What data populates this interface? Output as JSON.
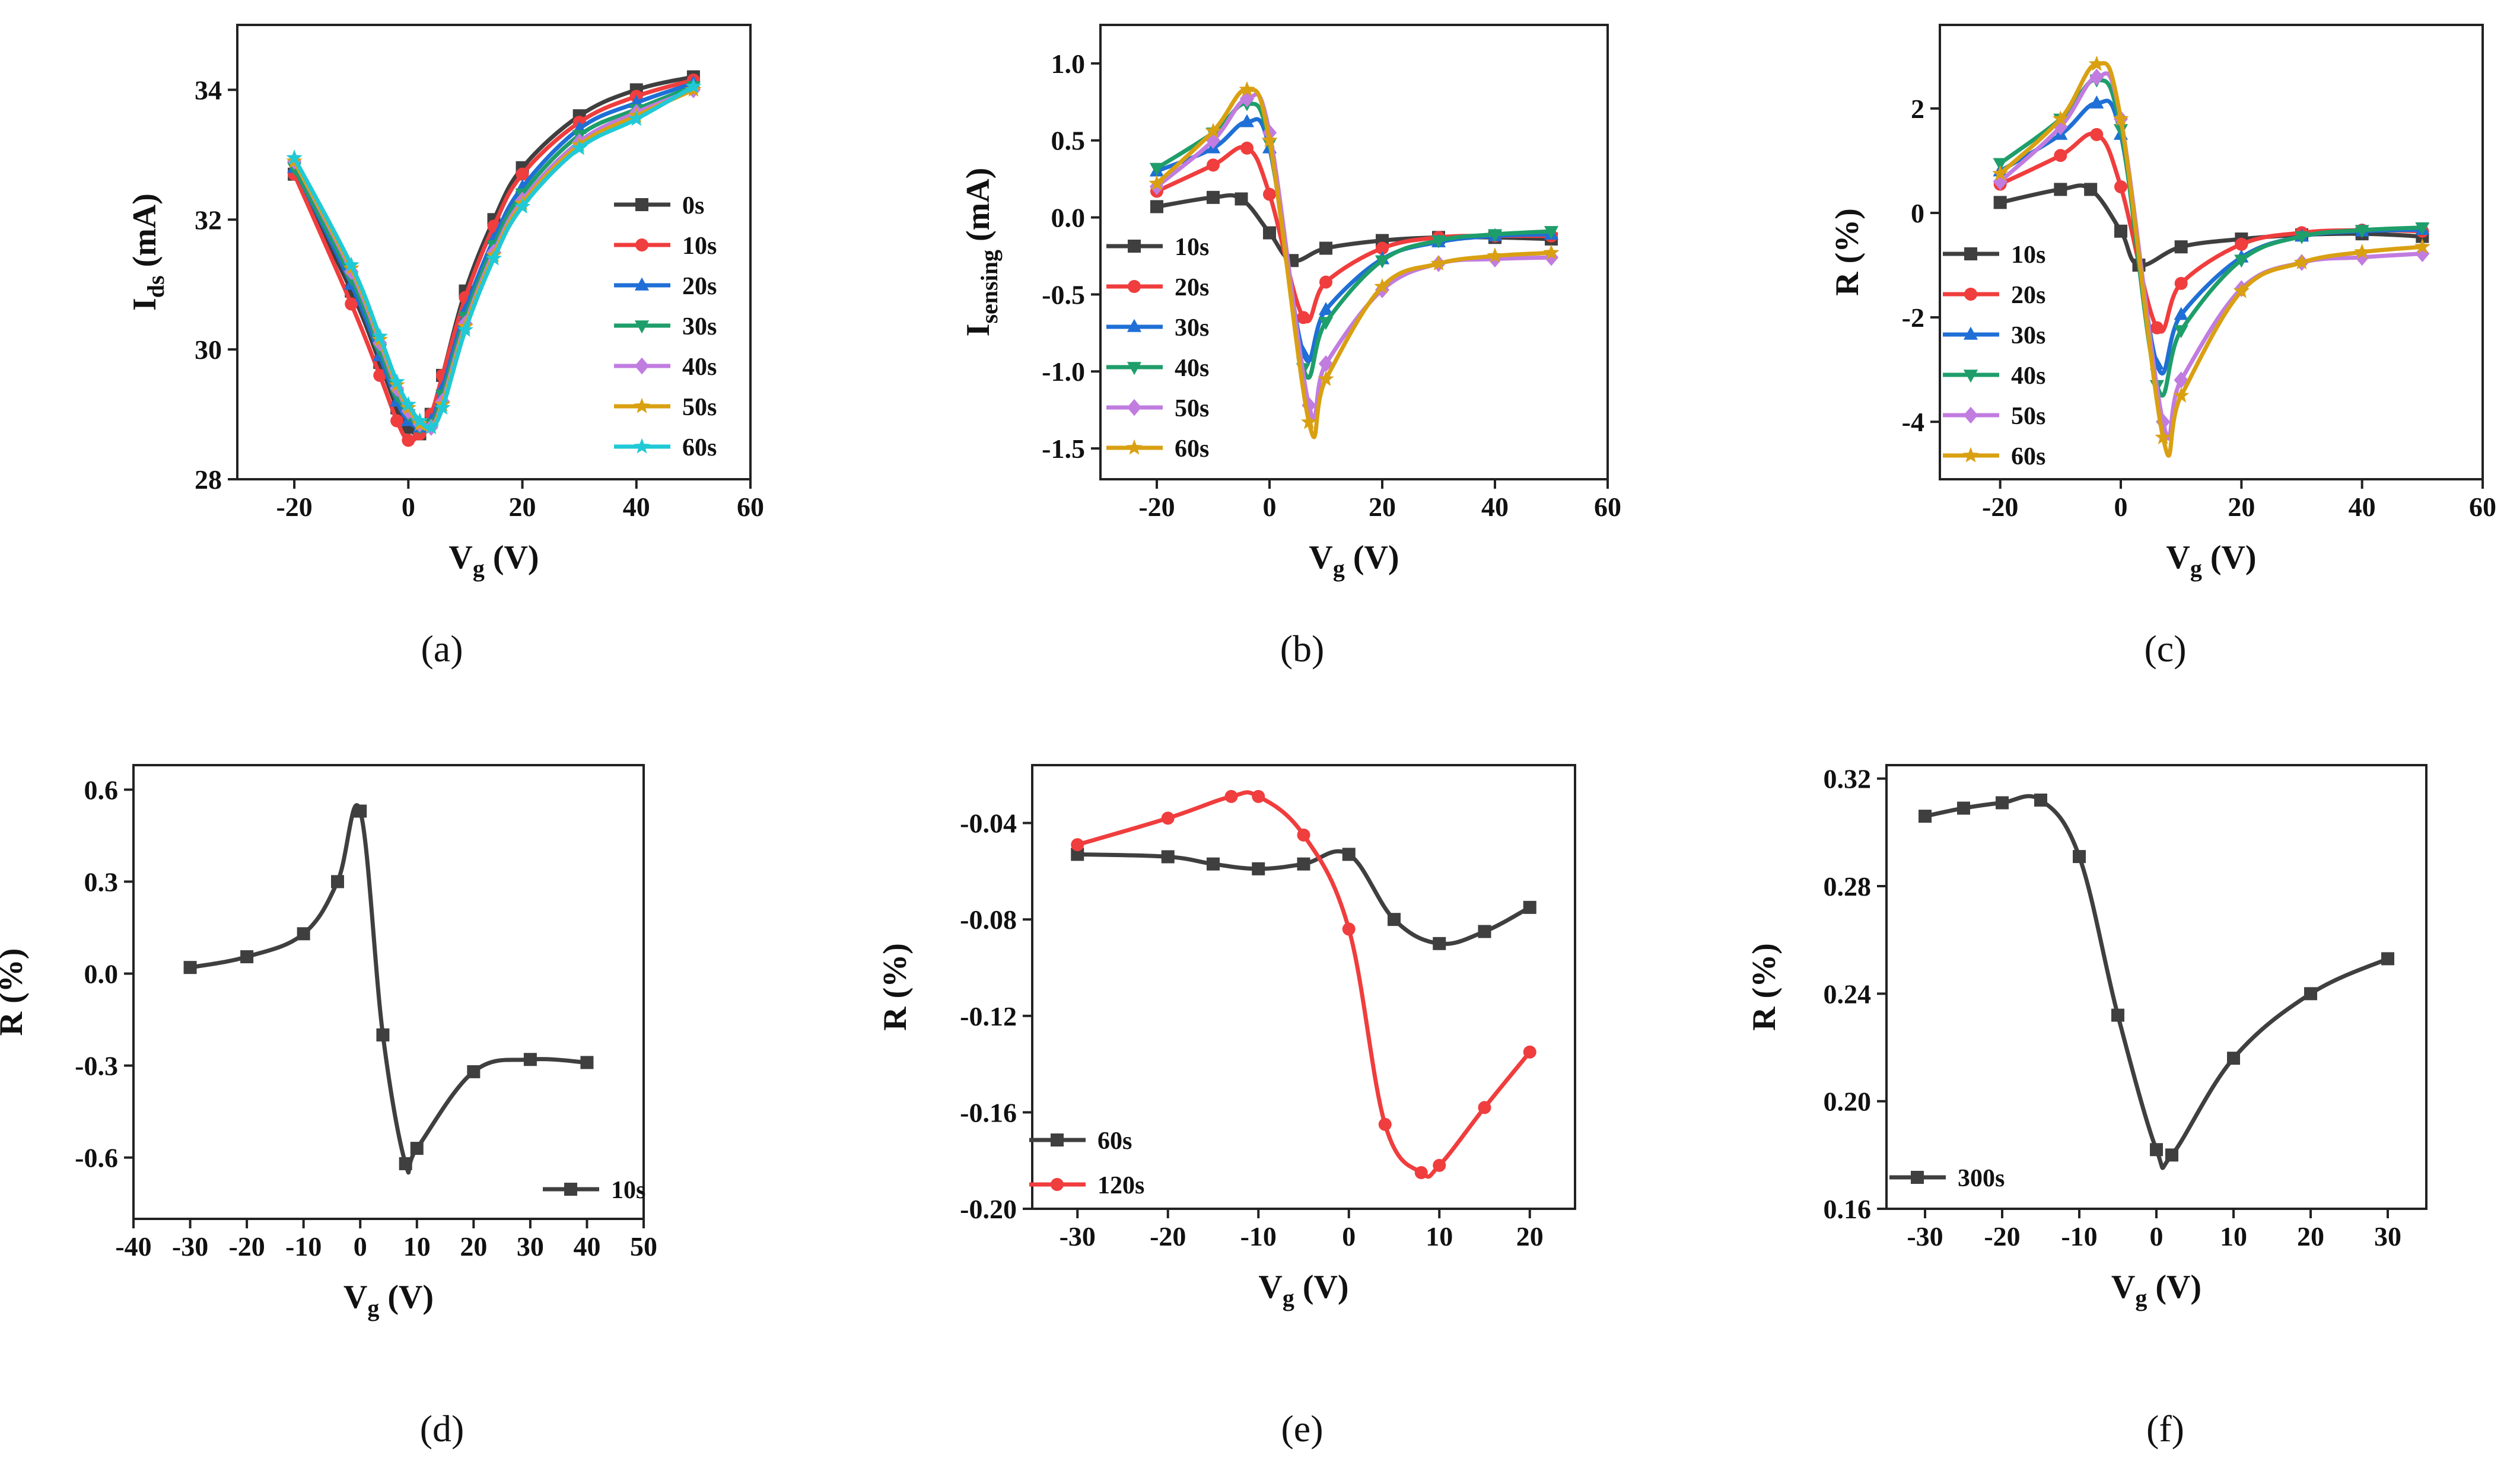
{
  "chart_data": [
    {
      "panel": "a",
      "caption": "(a)",
      "type": "line",
      "title": "",
      "xlabel": {
        "main": "V",
        "sub": "g",
        "rest": " (V)"
      },
      "ylabel": {
        "main": "I",
        "sub": "ds",
        "rest": " (mA)"
      },
      "xlim": [
        -30,
        60
      ],
      "ylim": [
        28,
        35
      ],
      "xticks": [
        -20,
        0,
        20,
        40,
        60
      ],
      "yticks": [
        28,
        30,
        32,
        34
      ],
      "xtick_labels": [
        "-20",
        "0",
        "20",
        "40",
        "60"
      ],
      "ytick_labels": [
        "28",
        "30",
        "32",
        "34"
      ],
      "legend_position": "right-center",
      "series": [
        {
          "name": "0s",
          "color": "#3f3f3f",
          "marker": "square",
          "x": [
            -20,
            -10,
            -5,
            -2,
            0,
            2,
            4,
            6,
            10,
            15,
            20,
            30,
            40,
            50
          ],
          "y": [
            32.7,
            30.9,
            29.8,
            29.1,
            28.8,
            28.7,
            29.0,
            29.6,
            30.9,
            32.0,
            32.8,
            33.6,
            34.0,
            34.2
          ]
        },
        {
          "name": "10s",
          "color": "#f03d3d",
          "marker": "circle",
          "x": [
            -20,
            -10,
            -5,
            -2,
            0,
            2,
            4,
            6,
            10,
            15,
            20,
            30,
            40,
            50
          ],
          "y": [
            32.7,
            30.7,
            29.6,
            28.9,
            28.6,
            28.7,
            29.0,
            29.6,
            30.8,
            31.9,
            32.7,
            33.5,
            33.9,
            34.15
          ]
        },
        {
          "name": "20s",
          "color": "#1f6fd6",
          "marker": "triangle-up",
          "x": [
            -20,
            -10,
            -5,
            -2,
            0,
            2,
            4,
            6,
            10,
            15,
            20,
            30,
            40,
            50
          ],
          "y": [
            32.8,
            31.0,
            29.9,
            29.2,
            28.9,
            28.8,
            28.9,
            29.4,
            30.6,
            31.7,
            32.5,
            33.4,
            33.8,
            34.1
          ]
        },
        {
          "name": "30s",
          "color": "#1e9e6a",
          "marker": "triangle-down",
          "x": [
            -20,
            -10,
            -5,
            -2,
            0,
            2,
            4,
            6,
            10,
            15,
            20,
            30,
            40,
            50
          ],
          "y": [
            32.8,
            31.1,
            30.0,
            29.3,
            29.0,
            28.8,
            28.85,
            29.3,
            30.5,
            31.6,
            32.4,
            33.3,
            33.7,
            34.05
          ]
        },
        {
          "name": "40s",
          "color": "#c17ce0",
          "marker": "diamond",
          "x": [
            -20,
            -10,
            -5,
            -2,
            0,
            2,
            4,
            6,
            10,
            15,
            20,
            30,
            40,
            50
          ],
          "y": [
            32.9,
            31.2,
            30.1,
            29.4,
            29.05,
            28.85,
            28.8,
            29.2,
            30.4,
            31.5,
            32.3,
            33.2,
            33.65,
            34.0
          ]
        },
        {
          "name": "50s",
          "color": "#d9a012",
          "marker": "star",
          "x": [
            -20,
            -10,
            -5,
            -2,
            0,
            2,
            4,
            6,
            10,
            15,
            20,
            30,
            40,
            50
          ],
          "y": [
            32.9,
            31.25,
            30.15,
            29.45,
            29.1,
            28.85,
            28.8,
            29.15,
            30.35,
            31.45,
            32.25,
            33.15,
            33.6,
            34.0
          ]
        },
        {
          "name": "60s",
          "color": "#21c9d6",
          "marker": "star",
          "x": [
            -20,
            -10,
            -5,
            -2,
            0,
            2,
            4,
            6,
            10,
            15,
            20,
            30,
            40,
            50
          ],
          "y": [
            32.95,
            31.3,
            30.2,
            29.5,
            29.15,
            28.9,
            28.8,
            29.1,
            30.3,
            31.4,
            32.2,
            33.1,
            33.55,
            34.05
          ]
        }
      ]
    },
    {
      "panel": "b",
      "caption": "(b)",
      "type": "line",
      "title": "",
      "xlabel": {
        "main": "V",
        "sub": "g",
        "rest": " (V)"
      },
      "ylabel": {
        "main": "I",
        "sub": "sensing",
        "rest": " (mA)"
      },
      "xlim": [
        -30,
        60
      ],
      "ylim": [
        -1.7,
        1.25
      ],
      "xticks": [
        -20,
        0,
        20,
        40,
        60
      ],
      "yticks": [
        -1.5,
        -1.0,
        -0.5,
        0.0,
        0.5,
        1.0
      ],
      "xtick_labels": [
        "-20",
        "0",
        "20",
        "40",
        "60"
      ],
      "ytick_labels": [
        "-1.5",
        "-1.0",
        "-0.5",
        "0.0",
        "0.5",
        "1.0"
      ],
      "legend_position": "left-bottom",
      "series": [
        {
          "name": "10s",
          "color": "#3f3f3f",
          "marker": "square",
          "x": [
            -20,
            -10,
            -5,
            0,
            4,
            10,
            20,
            30,
            40,
            50
          ],
          "y": [
            0.07,
            0.13,
            0.12,
            -0.1,
            -0.28,
            -0.2,
            -0.15,
            -0.13,
            -0.13,
            -0.14
          ]
        },
        {
          "name": "20s",
          "color": "#f03d3d",
          "marker": "circle",
          "x": [
            -20,
            -10,
            -4,
            0,
            6,
            10,
            20,
            30,
            40,
            50
          ],
          "y": [
            0.17,
            0.34,
            0.45,
            0.15,
            -0.65,
            -0.42,
            -0.2,
            -0.13,
            -0.12,
            -0.12
          ]
        },
        {
          "name": "30s",
          "color": "#1f6fd6",
          "marker": "triangle-up",
          "x": [
            -20,
            -10,
            -4,
            0,
            6,
            10,
            20,
            30,
            40,
            50
          ],
          "y": [
            0.3,
            0.45,
            0.62,
            0.45,
            -0.88,
            -0.6,
            -0.27,
            -0.16,
            -0.12,
            -0.11
          ]
        },
        {
          "name": "40s",
          "color": "#1e9e6a",
          "marker": "triangle-down",
          "x": [
            -20,
            -10,
            -4,
            0,
            6,
            10,
            20,
            30,
            40,
            50
          ],
          "y": [
            0.32,
            0.55,
            0.74,
            0.48,
            -0.98,
            -0.68,
            -0.28,
            -0.15,
            -0.11,
            -0.09
          ]
        },
        {
          "name": "50s",
          "color": "#c17ce0",
          "marker": "diamond",
          "x": [
            -20,
            -10,
            -4,
            0,
            7,
            10,
            20,
            30,
            40,
            50
          ],
          "y": [
            0.2,
            0.5,
            0.77,
            0.55,
            -1.22,
            -0.95,
            -0.47,
            -0.3,
            -0.27,
            -0.26
          ]
        },
        {
          "name": "60s",
          "color": "#d9a012",
          "marker": "star",
          "x": [
            -20,
            -10,
            -4,
            0,
            7,
            10,
            20,
            30,
            40,
            50
          ],
          "y": [
            0.22,
            0.56,
            0.83,
            0.5,
            -1.33,
            -1.05,
            -0.45,
            -0.3,
            -0.25,
            -0.23
          ]
        }
      ]
    },
    {
      "panel": "c",
      "caption": "(c)",
      "type": "line",
      "title": "",
      "xlabel": {
        "main": "V",
        "sub": "g",
        "rest": " (V)"
      },
      "ylabel": {
        "main": "R (%)",
        "sub": "",
        "rest": ""
      },
      "xlim": [
        -30,
        60
      ],
      "ylim": [
        -5.1,
        3.6
      ],
      "xticks": [
        -20,
        0,
        20,
        40,
        60
      ],
      "yticks": [
        -4,
        -2,
        0,
        2
      ],
      "xtick_labels": [
        "-20",
        "0",
        "20",
        "40",
        "60"
      ],
      "ytick_labels": [
        "-4",
        "-2",
        "0",
        "2"
      ],
      "legend_position": "left-bottom",
      "series": [
        {
          "name": "10s",
          "color": "#3f3f3f",
          "marker": "square",
          "x": [
            -20,
            -10,
            -5,
            0,
            3,
            10,
            20,
            30,
            40,
            50
          ],
          "y": [
            0.2,
            0.45,
            0.45,
            -0.35,
            -1.0,
            -0.65,
            -0.5,
            -0.42,
            -0.4,
            -0.45
          ]
        },
        {
          "name": "20s",
          "color": "#f03d3d",
          "marker": "circle",
          "x": [
            -20,
            -10,
            -4,
            0,
            6,
            10,
            20,
            30,
            40,
            50
          ],
          "y": [
            0.55,
            1.1,
            1.5,
            0.5,
            -2.2,
            -1.35,
            -0.6,
            -0.38,
            -0.33,
            -0.35
          ]
        },
        {
          "name": "30s",
          "color": "#1f6fd6",
          "marker": "triangle-up",
          "x": [
            -20,
            -10,
            -4,
            0,
            6,
            10,
            20,
            30,
            40,
            50
          ],
          "y": [
            0.8,
            1.5,
            2.1,
            1.5,
            -2.9,
            -1.95,
            -0.85,
            -0.45,
            -0.35,
            -0.32
          ]
        },
        {
          "name": "40s",
          "color": "#1e9e6a",
          "marker": "triangle-down",
          "x": [
            -20,
            -10,
            -4,
            0,
            6,
            10,
            20,
            30,
            40,
            50
          ],
          "y": [
            0.95,
            1.8,
            2.55,
            1.6,
            -3.3,
            -2.25,
            -0.9,
            -0.45,
            -0.33,
            -0.28
          ]
        },
        {
          "name": "50s",
          "color": "#c17ce0",
          "marker": "diamond",
          "x": [
            -20,
            -10,
            -4,
            0,
            7,
            10,
            20,
            30,
            40,
            50
          ],
          "y": [
            0.6,
            1.65,
            2.6,
            1.8,
            -4.0,
            -3.2,
            -1.45,
            -0.95,
            -0.85,
            -0.78
          ]
        },
        {
          "name": "60s",
          "color": "#d9a012",
          "marker": "star",
          "x": [
            -20,
            -10,
            -4,
            0,
            7,
            10,
            20,
            30,
            40,
            50
          ],
          "y": [
            0.75,
            1.8,
            2.85,
            1.8,
            -4.3,
            -3.5,
            -1.5,
            -0.95,
            -0.75,
            -0.65
          ]
        }
      ]
    },
    {
      "panel": "d",
      "caption": "(d)",
      "type": "line",
      "title": "",
      "xlabel": {
        "main": "V",
        "sub": "g",
        "rest": " (V)"
      },
      "ylabel": {
        "main": "R (%)",
        "sub": "",
        "rest": ""
      },
      "xlim": [
        -40,
        50
      ],
      "ylim": [
        -0.8,
        0.68
      ],
      "xticks": [
        -40,
        -30,
        -20,
        -10,
        0,
        10,
        20,
        30,
        40,
        50
      ],
      "yticks": [
        -0.6,
        -0.3,
        0.0,
        0.3,
        0.6
      ],
      "xtick_labels": [
        "-40",
        "-30",
        "-20",
        "-10",
        "0",
        "10",
        "20",
        "30",
        "40",
        "50"
      ],
      "ytick_labels": [
        "-0.6",
        "-0.3",
        "0.0",
        "0.3",
        "0.6"
      ],
      "legend_position": "bottom-right",
      "series": [
        {
          "name": "10s",
          "color": "#3f3f3f",
          "marker": "square",
          "x": [
            -30,
            -20,
            -10,
            -4,
            0,
            4,
            8,
            10,
            20,
            30,
            40
          ],
          "y": [
            0.02,
            0.055,
            0.13,
            0.3,
            0.53,
            -0.2,
            -0.62,
            -0.57,
            -0.32,
            -0.28,
            -0.29
          ]
        }
      ]
    },
    {
      "panel": "e",
      "caption": "(e)",
      "type": "line",
      "title": "",
      "xlabel": {
        "main": "V",
        "sub": "g",
        "rest": " (V)"
      },
      "ylabel": {
        "main": "R (%)",
        "sub": "",
        "rest": ""
      },
      "xlim": [
        -35,
        25
      ],
      "ylim": [
        -0.2,
        -0.016
      ],
      "xticks": [
        -30,
        -20,
        -10,
        0,
        10,
        20
      ],
      "yticks": [
        -0.2,
        -0.16,
        -0.12,
        -0.08,
        -0.04
      ],
      "xtick_labels": [
        "-30",
        "-20",
        "-10",
        "0",
        "10",
        "20"
      ],
      "ytick_labels": [
        "-0.20",
        "-0.16",
        "-0.12",
        "-0.08",
        "-0.04"
      ],
      "legend_position": "bottom-left",
      "series": [
        {
          "name": "60s",
          "color": "#3f3f3f",
          "marker": "square",
          "x": [
            -30,
            -20,
            -15,
            -10,
            -5,
            0,
            5,
            10,
            15,
            20
          ],
          "y": [
            -0.053,
            -0.054,
            -0.057,
            -0.059,
            -0.057,
            -0.053,
            -0.08,
            -0.09,
            -0.085,
            -0.075
          ]
        },
        {
          "name": "120s",
          "color": "#f03d3d",
          "marker": "circle",
          "x": [
            -30,
            -20,
            -13,
            -10,
            -5,
            0,
            4,
            8,
            10,
            15,
            20
          ],
          "y": [
            -0.049,
            -0.038,
            -0.029,
            -0.029,
            -0.045,
            -0.084,
            -0.165,
            -0.185,
            -0.182,
            -0.158,
            -0.135
          ]
        }
      ]
    },
    {
      "panel": "f",
      "caption": "(f)",
      "type": "line",
      "title": "",
      "xlabel": {
        "main": "V",
        "sub": "g",
        "rest": " (V)"
      },
      "ylabel": {
        "main": "R (%)",
        "sub": "",
        "rest": ""
      },
      "xlim": [
        -35,
        35
      ],
      "ylim": [
        0.16,
        0.325
      ],
      "xticks": [
        -30,
        -20,
        -10,
        0,
        10,
        20,
        30
      ],
      "yticks": [
        0.16,
        0.2,
        0.24,
        0.28,
        0.32
      ],
      "xtick_labels": [
        "-30",
        "-20",
        "-10",
        "0",
        "10",
        "20",
        "30"
      ],
      "ytick_labels": [
        "0.16",
        "0.20",
        "0.24",
        "0.28",
        "0.32"
      ],
      "legend_position": "bottom-left",
      "series": [
        {
          "name": "300s",
          "color": "#3f3f3f",
          "marker": "square",
          "x": [
            -30,
            -25,
            -20,
            -15,
            -10,
            -5,
            0,
            2,
            10,
            20,
            30
          ],
          "y": [
            0.306,
            0.309,
            0.311,
            0.312,
            0.291,
            0.232,
            0.182,
            0.18,
            0.216,
            0.24,
            0.253
          ]
        }
      ]
    }
  ]
}
